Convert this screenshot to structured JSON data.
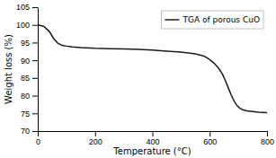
{
  "chart_data": {
    "type": "line",
    "xlabel": "Temperature (°C)",
    "ylabel": "Weight loss (%)",
    "x": [
      0,
      20,
      40,
      55,
      70,
      85,
      100,
      120,
      150,
      200,
      250,
      300,
      350,
      400,
      450,
      500,
      550,
      580,
      600,
      615,
      625,
      635,
      645,
      655,
      665,
      675,
      685,
      695,
      705,
      715,
      730,
      750,
      770,
      800
    ],
    "series": [
      {
        "name": "TGA of porous CuO",
        "color": "#1a1a1a",
        "values": [
          100.0,
          99.6,
          98.2,
          96.2,
          94.8,
          94.2,
          94.0,
          93.8,
          93.6,
          93.4,
          93.3,
          93.2,
          93.1,
          92.9,
          92.6,
          92.3,
          91.8,
          91.2,
          90.2,
          89.2,
          88.3,
          87.3,
          86.0,
          84.2,
          82.2,
          80.2,
          78.5,
          77.2,
          76.5,
          76.0,
          75.7,
          75.5,
          75.3,
          75.2
        ]
      }
    ],
    "xlim": [
      0,
      800
    ],
    "ylim": [
      70,
      105
    ],
    "xticks": [
      0,
      200,
      400,
      600,
      800
    ],
    "yticks": [
      70,
      75,
      80,
      85,
      90,
      95,
      100,
      105
    ],
    "legend": "upper right"
  }
}
